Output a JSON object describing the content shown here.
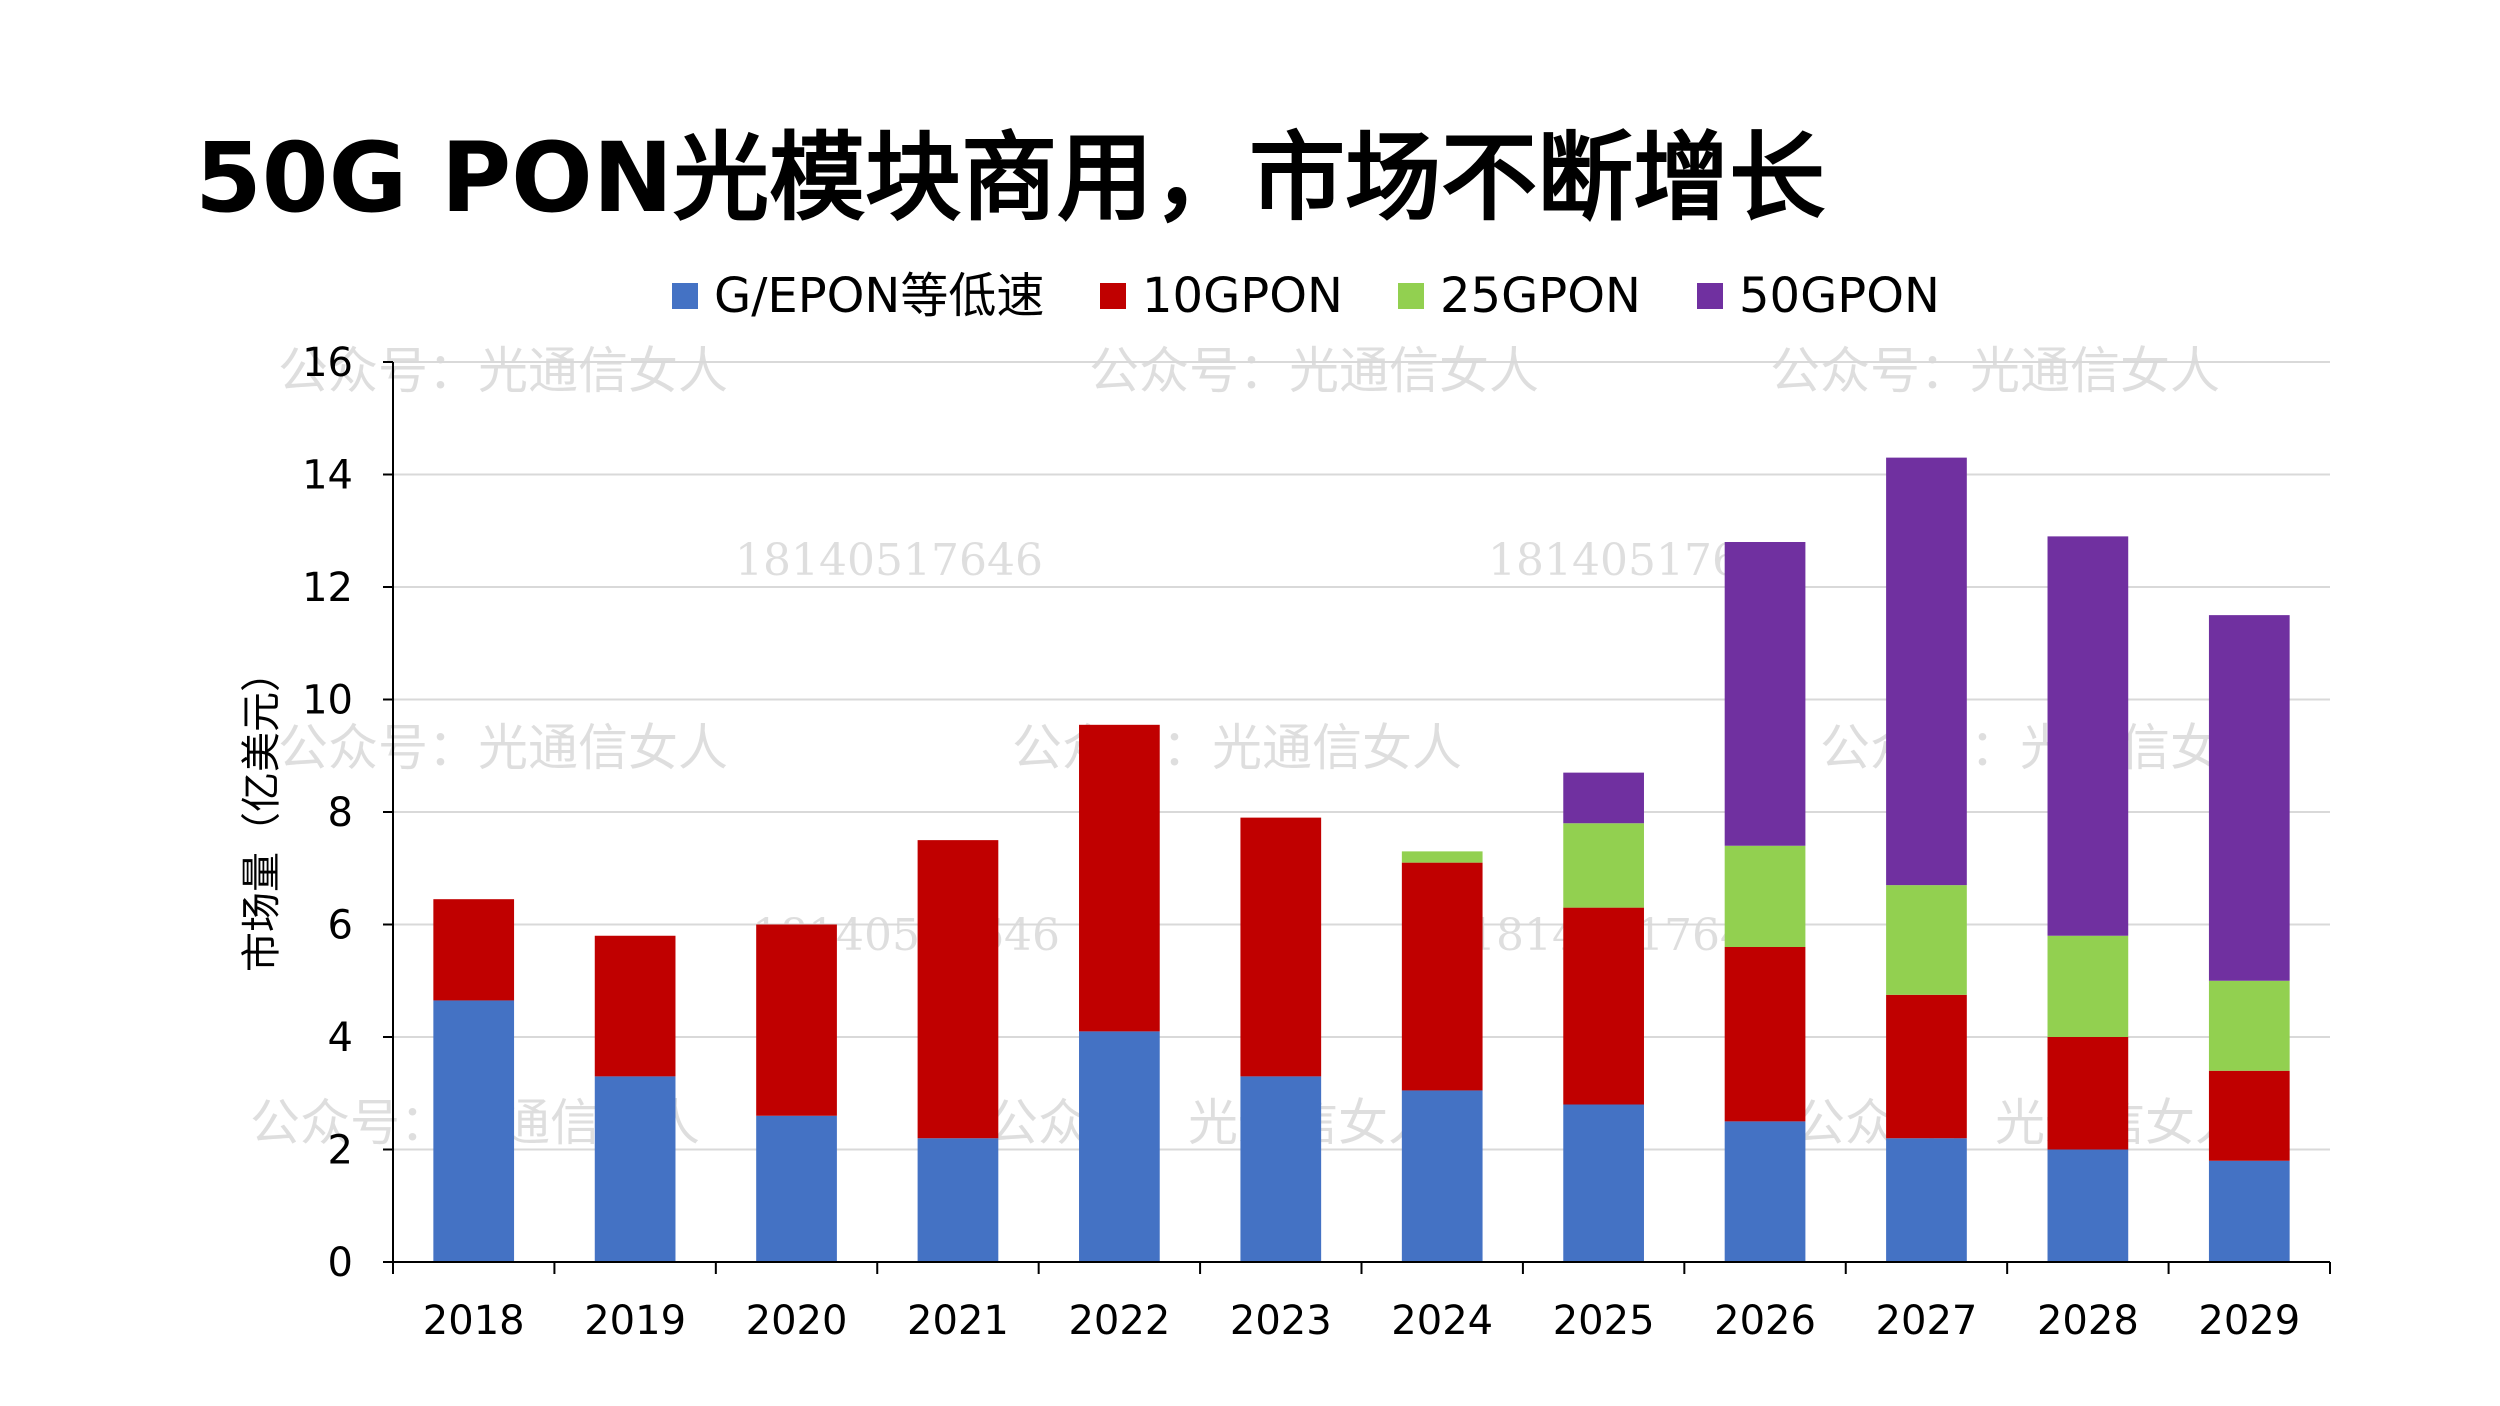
{
  "title": "50G PON光模块商用，市场不断增长",
  "watermarks": {
    "account": "公众号：光通信女人",
    "phone": "18140517646"
  },
  "chart_data": {
    "type": "bar",
    "stacked": true,
    "categories": [
      "2018",
      "2019",
      "2020",
      "2021",
      "2022",
      "2023",
      "2024",
      "2025",
      "2026",
      "2027",
      "2028",
      "2029"
    ],
    "series": [
      {
        "name": "G/EPON等低速",
        "color": "#4472C4",
        "values": [
          4.65,
          3.3,
          2.6,
          2.2,
          4.1,
          3.3,
          3.05,
          2.8,
          2.5,
          2.2,
          2.0,
          1.8
        ]
      },
      {
        "name": "10GPON",
        "color": "#C00000",
        "values": [
          1.8,
          2.5,
          3.4,
          5.3,
          5.45,
          4.6,
          4.05,
          3.5,
          3.1,
          2.55,
          2.0,
          1.6
        ]
      },
      {
        "name": "25GPON",
        "color": "#92D050",
        "values": [
          0,
          0,
          0,
          0,
          0,
          0,
          0.2,
          1.5,
          1.8,
          1.95,
          1.8,
          1.6
        ]
      },
      {
        "name": "50GPON",
        "color": "#7030A0",
        "values": [
          0,
          0,
          0,
          0,
          0,
          0,
          0,
          0.9,
          5.4,
          7.6,
          7.1,
          6.5
        ]
      }
    ],
    "ylabel": "市场量（亿美元）",
    "xlabel": "",
    "ylim": [
      0,
      16
    ],
    "yticks": [
      0,
      2,
      4,
      6,
      8,
      10,
      12,
      14,
      16
    ],
    "grid": true,
    "legend": "top"
  }
}
